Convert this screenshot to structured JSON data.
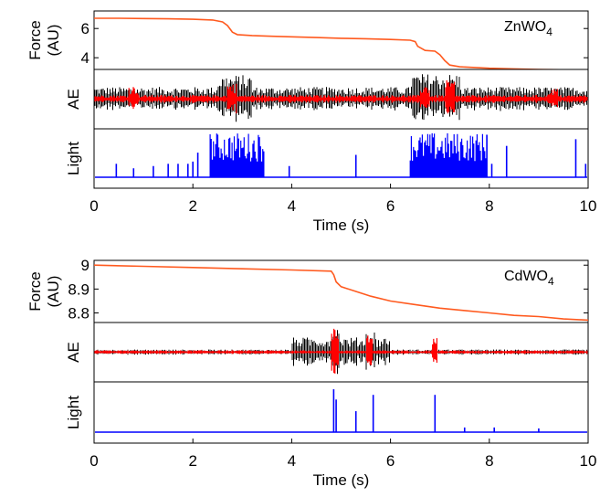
{
  "chart_data": [
    {
      "type": "line",
      "material": {
        "prefix": "ZnWO",
        "sub": "4"
      },
      "xlabel": "Time (s)",
      "xlim": [
        0,
        10
      ],
      "xticks": [
        "0",
        "2",
        "4",
        "6",
        "8",
        "10"
      ],
      "panels": {
        "force": {
          "ylabel": [
            "Force",
            "(AU)"
          ],
          "ylim": [
            3.2,
            7.2
          ],
          "yticks": [
            6,
            4
          ],
          "series": [
            {
              "color": "#ff5a1f",
              "points": [
                [
                  0,
                  6.7
                ],
                [
                  0.5,
                  6.7
                ],
                [
                  1.0,
                  6.68
                ],
                [
                  1.5,
                  6.66
                ],
                [
                  2.0,
                  6.63
                ],
                [
                  2.4,
                  6.58
                ],
                [
                  2.6,
                  6.45
                ],
                [
                  2.7,
                  6.2
                ],
                [
                  2.8,
                  5.75
                ],
                [
                  2.9,
                  5.58
                ],
                [
                  3.2,
                  5.52
                ],
                [
                  3.6,
                  5.47
                ],
                [
                  4.0,
                  5.43
                ],
                [
                  4.5,
                  5.38
                ],
                [
                  5.0,
                  5.33
                ],
                [
                  5.5,
                  5.3
                ],
                [
                  6.0,
                  5.25
                ],
                [
                  6.4,
                  5.2
                ],
                [
                  6.5,
                  5.1
                ],
                [
                  6.55,
                  4.78
                ],
                [
                  6.7,
                  4.5
                ],
                [
                  6.9,
                  4.45
                ],
                [
                  7.0,
                  4.2
                ],
                [
                  7.1,
                  3.8
                ],
                [
                  7.2,
                  3.5
                ],
                [
                  7.4,
                  3.38
                ],
                [
                  8.0,
                  3.28
                ],
                [
                  8.5,
                  3.24
                ],
                [
                  9.0,
                  3.2
                ],
                [
                  10,
                  3.16
                ]
              ]
            }
          ]
        },
        "ae": {
          "ylabel": [
            "AE"
          ],
          "noise_black": [
            {
              "x0": 0.0,
              "x1": 10.0,
              "amp": 0.45
            },
            {
              "x0": 2.5,
              "x1": 3.2,
              "amp": 0.9
            },
            {
              "x0": 6.4,
              "x1": 7.4,
              "amp": 0.95
            }
          ],
          "noise_red": [
            {
              "x0": 0.0,
              "x1": 10.0,
              "amp": 0.15
            },
            {
              "x0": 0.7,
              "x1": 0.9,
              "amp": 0.5
            },
            {
              "x0": 2.7,
              "x1": 2.9,
              "amp": 0.6
            },
            {
              "x0": 6.6,
              "x1": 6.8,
              "amp": 0.55
            },
            {
              "x0": 7.1,
              "x1": 7.3,
              "amp": 0.7
            },
            {
              "x0": 9.2,
              "x1": 9.4,
              "amp": 0.4
            }
          ]
        },
        "light": {
          "ylabel": [
            "Light"
          ],
          "color": "#0000ff",
          "spikes": [
            [
              0.45,
              0.3
            ],
            [
              0.8,
              0.2
            ],
            [
              1.2,
              0.25
            ],
            [
              1.5,
              0.3
            ],
            [
              1.7,
              0.3
            ],
            [
              1.9,
              0.3
            ],
            [
              2.0,
              0.35
            ],
            [
              2.1,
              0.55
            ],
            [
              3.95,
              0.25
            ],
            [
              5.3,
              0.5
            ],
            [
              7.95,
              0.95
            ],
            [
              8.05,
              0.3
            ],
            [
              8.35,
              0.7
            ],
            [
              9.75,
              0.85
            ],
            [
              9.95,
              0.3
            ]
          ],
          "bursts": [
            [
              2.35,
              3.45
            ],
            [
              6.4,
              7.95
            ]
          ]
        }
      }
    },
    {
      "type": "line",
      "material": {
        "prefix": "CdWO",
        "sub": "4"
      },
      "xlabel": "Time (s)",
      "xlim": [
        0,
        10
      ],
      "xticks": [
        "0",
        "2",
        "4",
        "6",
        "8",
        "10"
      ],
      "panels": {
        "force": {
          "ylabel": [
            "Force",
            "(AU)"
          ],
          "ylim": [
            8.76,
            9.02
          ],
          "yticks": [
            9,
            8.9,
            8.8
          ],
          "ytick_labels": [
            "9",
            "8.9",
            "8.8"
          ],
          "series": [
            {
              "color": "#ff5a1f",
              "points": [
                [
                  0,
                  9.0
                ],
                [
                  1,
                  8.995
                ],
                [
                  2,
                  8.99
                ],
                [
                  3,
                  8.985
                ],
                [
                  4,
                  8.98
                ],
                [
                  4.8,
                  8.975
                ],
                [
                  4.85,
                  8.96
                ],
                [
                  4.9,
                  8.93
                ],
                [
                  5.0,
                  8.91
                ],
                [
                  5.3,
                  8.89
                ],
                [
                  5.6,
                  8.87
                ],
                [
                  6,
                  8.85
                ],
                [
                  6.5,
                  8.835
                ],
                [
                  7,
                  8.82
                ],
                [
                  7.5,
                  8.81
                ],
                [
                  8,
                  8.8
                ],
                [
                  8.5,
                  8.79
                ],
                [
                  9,
                  8.785
                ],
                [
                  9.5,
                  8.775
                ],
                [
                  10,
                  8.77
                ]
              ]
            }
          ]
        },
        "ae": {
          "ylabel": [
            "AE"
          ],
          "noise_black": [
            {
              "x0": 0.0,
              "x1": 10.0,
              "amp": 0.1
            },
            {
              "x0": 4.0,
              "x1": 6.0,
              "amp": 0.55
            },
            {
              "x0": 4.8,
              "x1": 5.0,
              "amp": 0.95
            },
            {
              "x0": 5.5,
              "x1": 5.7,
              "amp": 0.8
            }
          ],
          "noise_red": [
            {
              "x0": 0.0,
              "x1": 10.0,
              "amp": 0.07
            },
            {
              "x0": 4.8,
              "x1": 4.95,
              "amp": 0.9
            },
            {
              "x0": 5.5,
              "x1": 5.65,
              "amp": 0.7
            },
            {
              "x0": 6.85,
              "x1": 6.95,
              "amp": 0.6
            }
          ]
        },
        "light": {
          "ylabel": [
            "Light"
          ],
          "color": "#0000ff",
          "spikes": [
            [
              4.85,
              0.92
            ],
            [
              4.9,
              0.7
            ],
            [
              5.3,
              0.45
            ],
            [
              5.65,
              0.8
            ],
            [
              6.9,
              0.8
            ],
            [
              7.5,
              0.1
            ],
            [
              8.1,
              0.1
            ],
            [
              9.0,
              0.08
            ]
          ],
          "bursts": []
        }
      }
    }
  ]
}
